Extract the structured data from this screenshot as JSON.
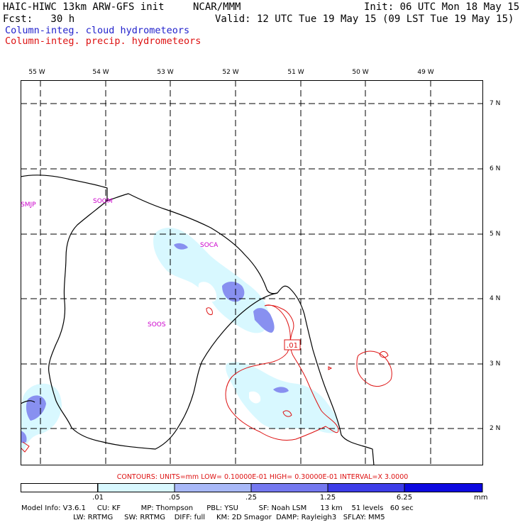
{
  "header": {
    "title": "HAIC-HIWC 13km ARW-GFS init",
    "org": "NCAR/MMM",
    "init": "Init: 06 UTC Mon 18 May 15",
    "fcst": "Fcst:   30 h",
    "valid": "Valid: 12 UTC Tue 19 May 15 (09 LST Tue 19 May 15)",
    "field_cloud": "Column-integ. cloud hydrometeors",
    "field_precip": "Column-integ. precip. hydrometeors"
  },
  "colors": {
    "cloud_text": "#2222cc",
    "precip_text": "#dd1111",
    "fill_1": "#d8f8ff",
    "fill_2": "#a8b8f8",
    "fill_3": "#7478f0",
    "fill_4": "#3c3ce8",
    "fill_5": "#0c08e0",
    "station": "#cc00cc"
  },
  "map": {
    "lon_labels": [
      "55 W",
      "54 W",
      "53 W",
      "52 W",
      "51 W",
      "50 W",
      "49 W"
    ],
    "lat_labels": [
      "7 N",
      "6 N",
      "5 N",
      "4 N",
      "3 N",
      "2 N"
    ],
    "stations": [
      "SMJP",
      "SOOM",
      "SOCA",
      "SOOS"
    ],
    "contour_label": ".01"
  },
  "contours_line": "CONTOURS:  UNITS=mm  LOW= 0.10000E-01  HIGH= 0.30000E-01  INTERVAL=X  3.0000",
  "colorbar": {
    "labels": [
      ".01",
      ".05",
      ".25",
      "1.25",
      "6.25"
    ],
    "units": "mm"
  },
  "model_info": {
    "line1": "Model Info: V3.6.1     CU: KF         MP: Thompson      PBL: YSU         SF: Noah LSM      13 km    51 levels   60 sec",
    "line2": "                       LW: RRTMG     SW: RRTMG    DIFF: full     KM: 2D Smagor  DAMP: Rayleigh3   SFLAY: MM5"
  }
}
